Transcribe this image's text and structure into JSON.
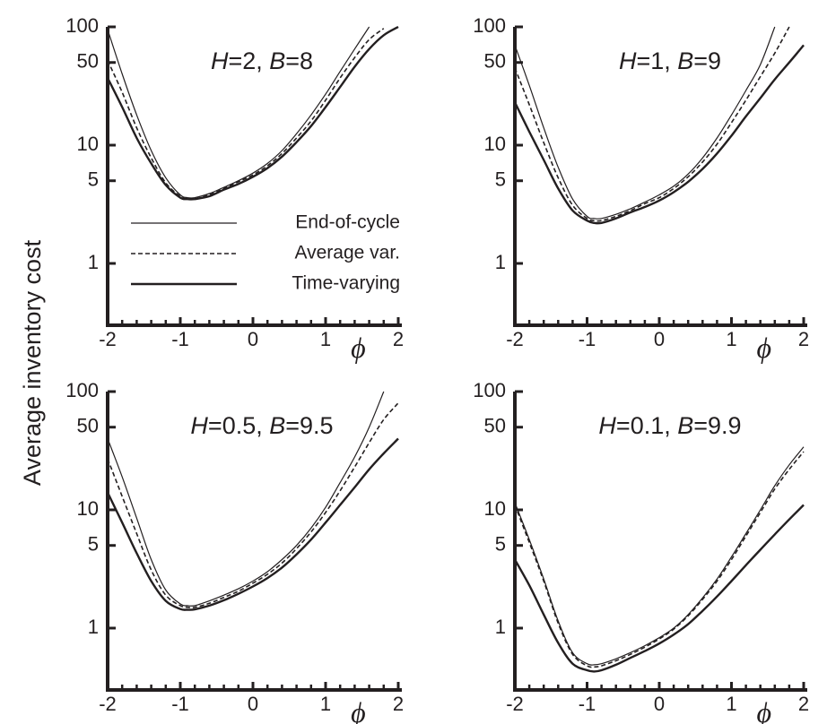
{
  "figure": {
    "ylabel": "Average inventory cost",
    "legend": [
      {
        "label": "End-of-cycle",
        "style": "thin-solid"
      },
      {
        "label": "Average var.",
        "style": "dashed"
      },
      {
        "label": "Time-varying",
        "style": "thick-solid"
      }
    ],
    "line_color": "#231f20"
  },
  "chart_data": [
    {
      "type": "line",
      "title_parts": [
        {
          "text": "H",
          "italic": true
        },
        {
          "text": "=2, ",
          "italic": false
        },
        {
          "text": "B",
          "italic": true
        },
        {
          "text": "=8",
          "italic": false
        }
      ],
      "xlabel": "ϕ",
      "ylabel": "Average inventory cost",
      "yscale": "log",
      "xlim": [
        -2,
        2
      ],
      "ylim": [
        0.3,
        100
      ],
      "xticks": [
        "-2",
        "-1",
        "0",
        "1",
        "2"
      ],
      "yticks": [
        "1",
        "5",
        "10",
        "50",
        "100"
      ],
      "x": [
        -2,
        -1.8,
        -1.6,
        -1.4,
        -1.2,
        -1,
        -0.9,
        -0.8,
        -0.6,
        -0.4,
        -0.2,
        0,
        0.2,
        0.4,
        0.6,
        0.8,
        1,
        1.2,
        1.4,
        1.6,
        1.8,
        2
      ],
      "series": [
        {
          "name": "End-of-cycle",
          "style": "thin-solid",
          "x": [
            -2,
            -1.8,
            -1.6,
            -1.4,
            -1.2,
            -1,
            -0.9,
            -0.8,
            -0.6,
            -0.4,
            -0.2,
            0,
            0.2,
            0.4,
            0.6,
            0.8,
            1,
            1.2,
            1.4,
            1.6
          ],
          "values": [
            95,
            40,
            18,
            9,
            5.3,
            3.8,
            3.6,
            3.6,
            3.9,
            4.4,
            5.0,
            5.8,
            7.0,
            9.0,
            12.5,
            18,
            27,
            42,
            65,
            100
          ]
        },
        {
          "name": "Average var.",
          "style": "dashed",
          "x": [
            -2,
            -1.8,
            -1.6,
            -1.4,
            -1.2,
            -1,
            -0.9,
            -0.8,
            -0.6,
            -0.4,
            -0.2,
            0,
            0.2,
            0.4,
            0.6,
            0.8,
            1,
            1.2,
            1.4,
            1.6,
            1.8
          ],
          "values": [
            52,
            28,
            14,
            7.8,
            4.8,
            3.7,
            3.5,
            3.5,
            3.8,
            4.3,
            4.9,
            5.6,
            6.7,
            8.5,
            11.5,
            16,
            24,
            37,
            55,
            78,
            97
          ]
        },
        {
          "name": "Time-varying",
          "style": "thick-solid",
          "x": [
            -2,
            -1.8,
            -1.6,
            -1.4,
            -1.2,
            -1,
            -0.9,
            -0.8,
            -0.6,
            -0.4,
            -0.2,
            0,
            0.2,
            0.4,
            0.6,
            0.8,
            1,
            1.2,
            1.4,
            1.6,
            1.8,
            2
          ],
          "values": [
            37,
            21,
            11.5,
            7,
            4.6,
            3.6,
            3.5,
            3.5,
            3.7,
            4.2,
            4.7,
            5.4,
            6.4,
            8.0,
            10.6,
            14.5,
            21,
            31,
            46,
            65,
            85,
            100
          ]
        }
      ]
    },
    {
      "type": "line",
      "title_parts": [
        {
          "text": "H",
          "italic": true
        },
        {
          "text": "=1, ",
          "italic": false
        },
        {
          "text": "B",
          "italic": true
        },
        {
          "text": "=9",
          "italic": false
        }
      ],
      "xlabel": "ϕ",
      "ylabel": "",
      "yscale": "log",
      "xlim": [
        -2,
        2
      ],
      "ylim": [
        0.3,
        100
      ],
      "xticks": [
        "-2",
        "-1",
        "0",
        "1",
        "2"
      ],
      "yticks": [
        "1",
        "5",
        "10",
        "50",
        "100"
      ],
      "series": [
        {
          "name": "End-of-cycle",
          "style": "thin-solid",
          "x": [
            -2,
            -1.8,
            -1.6,
            -1.4,
            -1.2,
            -1,
            -0.9,
            -0.8,
            -0.6,
            -0.4,
            -0.2,
            0,
            0.2,
            0.4,
            0.6,
            0.8,
            1,
            1.2,
            1.4,
            1.6
          ],
          "values": [
            70,
            32,
            14,
            6.5,
            3.5,
            2.5,
            2.4,
            2.4,
            2.6,
            2.9,
            3.3,
            3.8,
            4.5,
            5.7,
            7.8,
            11.5,
            18,
            29,
            48,
            100
          ]
        },
        {
          "name": "Average var.",
          "style": "dashed",
          "x": [
            -2,
            -1.8,
            -1.6,
            -1.4,
            -1.2,
            -1,
            -0.9,
            -0.8,
            -0.6,
            -0.4,
            -0.2,
            0,
            0.2,
            0.4,
            0.6,
            0.8,
            1,
            1.2,
            1.4,
            1.6,
            1.8
          ],
          "values": [
            45,
            22,
            10.5,
            5.3,
            3.1,
            2.4,
            2.3,
            2.3,
            2.5,
            2.8,
            3.2,
            3.6,
            4.3,
            5.4,
            7.2,
            10.2,
            15.5,
            24,
            38,
            60,
            100
          ]
        },
        {
          "name": "Time-varying",
          "style": "thick-solid",
          "x": [
            -2,
            -1.8,
            -1.6,
            -1.4,
            -1.2,
            -1,
            -0.9,
            -0.8,
            -0.6,
            -0.4,
            -0.2,
            0,
            0.2,
            0.4,
            0.6,
            0.8,
            1,
            1.2,
            1.4,
            1.6,
            1.8,
            2
          ],
          "values": [
            23,
            13,
            7.5,
            4.3,
            2.8,
            2.3,
            2.2,
            2.2,
            2.4,
            2.7,
            3.0,
            3.4,
            4.0,
            4.9,
            6.3,
            8.5,
            12,
            17.5,
            25,
            36,
            50,
            70
          ]
        }
      ]
    },
    {
      "type": "line",
      "title_parts": [
        {
          "text": "H",
          "italic": true
        },
        {
          "text": "=0.5, ",
          "italic": false
        },
        {
          "text": "B",
          "italic": true
        },
        {
          "text": "=9.5",
          "italic": false
        }
      ],
      "xlabel": "ϕ",
      "ylabel": "",
      "yscale": "log",
      "xlim": [
        -2,
        2
      ],
      "ylim": [
        0.3,
        100
      ],
      "xticks": [
        "-2",
        "-1",
        "0",
        "1",
        "2"
      ],
      "yticks": [
        "1",
        "5",
        "10",
        "50",
        "100"
      ],
      "series": [
        {
          "name": "End-of-cycle",
          "style": "thin-solid",
          "x": [
            -2,
            -1.8,
            -1.6,
            -1.4,
            -1.2,
            -1,
            -0.9,
            -0.8,
            -0.6,
            -0.4,
            -0.2,
            0,
            0.2,
            0.4,
            0.6,
            0.8,
            1,
            1.2,
            1.4,
            1.6,
            1.8
          ],
          "values": [
            40,
            19,
            8.5,
            3.8,
            2.1,
            1.6,
            1.55,
            1.55,
            1.7,
            1.9,
            2.15,
            2.5,
            3.0,
            3.8,
            5.0,
            7.0,
            10.5,
            17,
            28,
            50,
            100
          ]
        },
        {
          "name": "Average var.",
          "style": "dashed",
          "x": [
            -2,
            -1.8,
            -1.6,
            -1.4,
            -1.2,
            -1,
            -0.9,
            -0.8,
            -0.6,
            -0.4,
            -0.2,
            0,
            0.2,
            0.4,
            0.6,
            0.8,
            1,
            1.2,
            1.4,
            1.6,
            1.8,
            2
          ],
          "values": [
            27,
            13,
            6.3,
            3.1,
            1.9,
            1.55,
            1.5,
            1.5,
            1.62,
            1.82,
            2.05,
            2.4,
            2.85,
            3.55,
            4.7,
            6.5,
            9.5,
            14.5,
            23,
            37,
            58,
            80
          ]
        },
        {
          "name": "Time-varying",
          "style": "thick-solid",
          "x": [
            -2,
            -1.8,
            -1.6,
            -1.4,
            -1.2,
            -1,
            -0.9,
            -0.8,
            -0.6,
            -0.4,
            -0.2,
            0,
            0.2,
            0.4,
            0.6,
            0.8,
            1,
            1.2,
            1.4,
            1.6,
            1.8,
            2
          ],
          "values": [
            14,
            7.8,
            4.3,
            2.5,
            1.7,
            1.45,
            1.43,
            1.44,
            1.55,
            1.72,
            1.95,
            2.25,
            2.65,
            3.25,
            4.2,
            5.6,
            7.8,
            11,
            15.5,
            22,
            30,
            40
          ]
        }
      ]
    },
    {
      "type": "line",
      "title_parts": [
        {
          "text": "H",
          "italic": true
        },
        {
          "text": "=0.1, ",
          "italic": false
        },
        {
          "text": "B",
          "italic": true
        },
        {
          "text": "=9.9",
          "italic": false
        }
      ],
      "xlabel": "ϕ",
      "ylabel": "",
      "yscale": "log",
      "xlim": [
        -2,
        2
      ],
      "ylim": [
        0.3,
        100
      ],
      "xticks": [
        "-2",
        "-1",
        "0",
        "1",
        "2"
      ],
      "yticks": [
        "1",
        "5",
        "10",
        "50",
        "100"
      ],
      "series": [
        {
          "name": "End-of-cycle",
          "style": "thin-solid",
          "x": [
            -2,
            -1.8,
            -1.6,
            -1.4,
            -1.2,
            -1,
            -0.9,
            -0.8,
            -0.6,
            -0.4,
            -0.2,
            0,
            0.2,
            0.4,
            0.6,
            0.8,
            1,
            1.2,
            1.4,
            1.6,
            1.8,
            2
          ],
          "values": [
            11.5,
            5.6,
            2.6,
            1.15,
            0.62,
            0.5,
            0.49,
            0.5,
            0.55,
            0.62,
            0.71,
            0.83,
            1.0,
            1.3,
            1.8,
            2.6,
            4.0,
            6.3,
            10,
            16,
            24,
            34
          ]
        },
        {
          "name": "Average var.",
          "style": "dashed",
          "x": [
            -2,
            -1.8,
            -1.6,
            -1.4,
            -1.2,
            -1,
            -0.9,
            -0.8,
            -0.6,
            -0.4,
            -0.2,
            0,
            0.2,
            0.4,
            0.6,
            0.8,
            1,
            1.2,
            1.4,
            1.6,
            1.8,
            2
          ],
          "values": [
            11,
            5.3,
            2.5,
            1.1,
            0.6,
            0.48,
            0.47,
            0.48,
            0.53,
            0.6,
            0.69,
            0.81,
            0.98,
            1.27,
            1.75,
            2.5,
            3.8,
            6.0,
            9.5,
            15,
            22,
            31
          ]
        },
        {
          "name": "Time-varying",
          "style": "thick-solid",
          "x": [
            -2,
            -1.8,
            -1.6,
            -1.4,
            -1.2,
            -1,
            -0.9,
            -0.8,
            -0.6,
            -0.4,
            -0.2,
            0,
            0.2,
            0.4,
            0.6,
            0.8,
            1,
            1.2,
            1.4,
            1.6,
            1.8,
            2
          ],
          "values": [
            3.8,
            2.3,
            1.3,
            0.75,
            0.5,
            0.44,
            0.43,
            0.44,
            0.49,
            0.56,
            0.64,
            0.74,
            0.88,
            1.08,
            1.4,
            1.85,
            2.5,
            3.4,
            4.6,
            6.2,
            8.3,
            11
          ]
        }
      ]
    }
  ]
}
